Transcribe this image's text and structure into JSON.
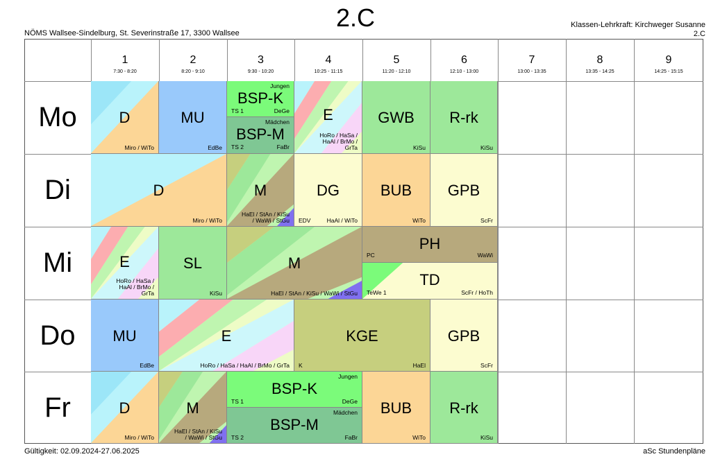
{
  "title": "2.C",
  "school": "NÖMS Wallsee-Sindelburg, St. Severinstraße 17, 3300 Wallsee",
  "teacher_label": "Klassen-Lehrkraft: Kirchweger Susanne",
  "class_code": "2.C",
  "validity": "Gültigkeit: 02.09.2024-27.06.2025",
  "brand": "aSc Stundenpläne",
  "periods": [
    {
      "num": "1",
      "time": "7:30 - 8:20"
    },
    {
      "num": "2",
      "time": "8:20 - 9:10"
    },
    {
      "num": "3",
      "time": "9:30 - 10:20"
    },
    {
      "num": "4",
      "time": "10:25 - 11:15"
    },
    {
      "num": "5",
      "time": "11:20 - 12:10"
    },
    {
      "num": "6",
      "time": "12:10 - 13:00"
    },
    {
      "num": "7",
      "time": "13:00 - 13:35"
    },
    {
      "num": "8",
      "time": "13:35 - 14:25"
    },
    {
      "num": "9",
      "time": "14:25 - 15:15"
    }
  ],
  "days": [
    "Mo",
    "Di",
    "Mi",
    "Do",
    "Fr"
  ],
  "colors": {
    "blue": "#99c9fb",
    "cyan": "#b9f3fb",
    "orange": "#fcd696",
    "green": "#9de89a",
    "bright_green": "#7bfb7a",
    "teal": "#7fc794",
    "cream": "#fcfcd0",
    "olive": "#c6cf7e",
    "khaki": "#b7a97d",
    "pink": "#fcadb0",
    "lightyellow": "#eefcc6",
    "purple": "#8070f0",
    "lightgreen": "#bff5b0",
    "lightpink": "#f8d6f8"
  },
  "lessons": {
    "mo1": {
      "subj": "D",
      "teachers": "Miro / WiTo"
    },
    "mo2": {
      "subj": "MU",
      "teachers": "EdBe"
    },
    "mo3a": {
      "subj": "BSP-K",
      "group": "Jungen",
      "room": "TS 1",
      "teachers": "DeGe"
    },
    "mo3b": {
      "subj": "BSP-M",
      "group": "Mädchen",
      "room": "TS 2",
      "teachers": "FaBr"
    },
    "mo4": {
      "subj": "E",
      "l1": "HoRo / HaSa /",
      "l2": "HaAl / BrMo /",
      "l3": "GrTa"
    },
    "mo5": {
      "subj": "GWB",
      "teachers": "KiSu"
    },
    "mo6": {
      "subj": "R-rk",
      "teachers": "KiSu"
    },
    "di1": {
      "subj": "D",
      "teachers": "Miro / WiTo"
    },
    "di3": {
      "subj": "M",
      "l1": "HaEl / StAn / KiSu",
      "l2": "/ WaWi / StGu"
    },
    "di4": {
      "subj": "DG",
      "room": "EDV",
      "teachers": "HaAl / WiTo"
    },
    "di5": {
      "subj": "BUB",
      "teachers": "WiTo"
    },
    "di6": {
      "subj": "GPB",
      "teachers": "ScFr"
    },
    "mi1": {
      "subj": "E",
      "l1": "HoRo / HaSa /",
      "l2": "HaAl / BrMo /",
      "l3": "GrTa"
    },
    "mi2": {
      "subj": "SL",
      "teachers": "KiSu"
    },
    "mi3": {
      "subj": "M",
      "teachers": "HaEl / StAn / KiSu / WaWi / StGu"
    },
    "mi5a": {
      "subj": "PH",
      "room": "PC",
      "teachers": "WaWi"
    },
    "mi5b": {
      "subj": "TD",
      "room": "TeWe 1",
      "teachers": "ScFr / HoTh"
    },
    "do1": {
      "subj": "MU",
      "teachers": "EdBe"
    },
    "do2": {
      "subj": "E",
      "teachers": "HoRo / HaSa / HaAl / BrMo / GrTa"
    },
    "do4": {
      "subj": "KGE",
      "room": "K",
      "teachers": "HaEl"
    },
    "do6": {
      "subj": "GPB",
      "teachers": "ScFr"
    },
    "fr1": {
      "subj": "D",
      "teachers": "Miro / WiTo"
    },
    "fr2": {
      "subj": "M",
      "l1": "HaEl / StAn / KiSu",
      "l2": "/ WaWi / StGu"
    },
    "fr3a": {
      "subj": "BSP-K",
      "group": "Jungen",
      "room": "TS 1",
      "teachers": "DeGe"
    },
    "fr3b": {
      "subj": "BSP-M",
      "group": "Mädchen",
      "room": "TS 2",
      "teachers": "FaBr"
    },
    "fr5": {
      "subj": "BUB",
      "teachers": "WiTo"
    },
    "fr6": {
      "subj": "R-rk",
      "teachers": "KiSu"
    }
  }
}
